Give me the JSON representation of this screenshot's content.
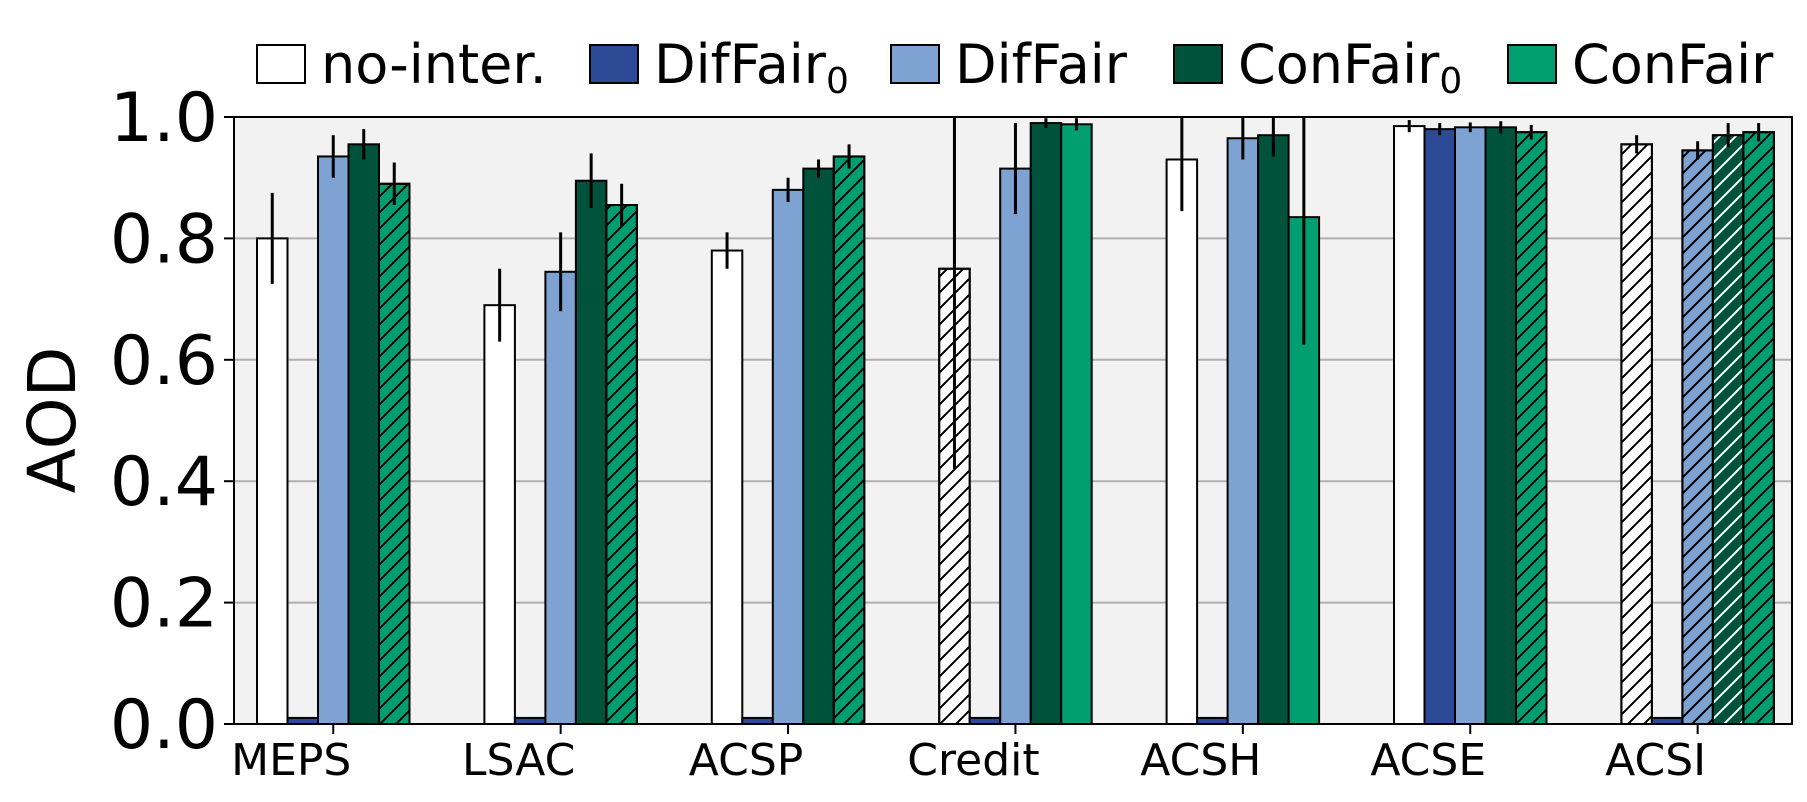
{
  "chart_data": {
    "type": "bar",
    "ylabel": "AOD",
    "xlabel": "",
    "title": "",
    "ylim": [
      0,
      1.0
    ],
    "yticks": [
      "0.0",
      "0.2",
      "0.4",
      "0.6",
      "0.8",
      "1.0"
    ],
    "grid": "horizontal",
    "legend_position": "top",
    "categories": [
      "MEPS",
      "LSAC",
      "ACSP",
      "Credit",
      "ACSH",
      "ACSE",
      "ACSI"
    ],
    "series": [
      {
        "name": "no-inter.",
        "legend_label": "no-inter.",
        "color": "#ffffff",
        "values": [
          0.8,
          0.69,
          0.78,
          0.75,
          0.93,
          0.985,
          0.955
        ],
        "errors": [
          0.075,
          0.06,
          0.03,
          0.33,
          0.085,
          0.01,
          0.015
        ],
        "hatched": [
          false,
          false,
          false,
          true,
          false,
          false,
          true
        ]
      },
      {
        "name": "DifFair_0",
        "legend_label": "DifFair",
        "legend_sub": "0",
        "color": "#2c4a96",
        "values": [
          0.01,
          0.01,
          0.01,
          0.01,
          0.01,
          0.98,
          0.01
        ],
        "errors": [
          0,
          0,
          0,
          0,
          0,
          0.01,
          0
        ],
        "hatched": [
          false,
          false,
          false,
          false,
          false,
          false,
          false
        ]
      },
      {
        "name": "DifFair",
        "legend_label": "DifFair",
        "color": "#7ea2d2",
        "values": [
          0.935,
          0.745,
          0.88,
          0.915,
          0.965,
          0.983,
          0.945
        ],
        "errors": [
          0.035,
          0.065,
          0.02,
          0.075,
          0.035,
          0.008,
          0.015
        ],
        "hatched": [
          false,
          false,
          false,
          false,
          false,
          false,
          true
        ]
      },
      {
        "name": "ConFair_0",
        "legend_label": "ConFair",
        "legend_sub": "0",
        "color": "#00533a",
        "values": [
          0.955,
          0.895,
          0.915,
          0.99,
          0.97,
          0.983,
          0.97
        ],
        "errors": [
          0.025,
          0.045,
          0.015,
          0.008,
          0.035,
          0.01,
          0.02
        ],
        "hatched": [
          false,
          false,
          false,
          false,
          false,
          false,
          true
        ]
      },
      {
        "name": "ConFair",
        "legend_label": "ConFair",
        "color": "#019e72",
        "values": [
          0.89,
          0.855,
          0.935,
          0.988,
          0.835,
          0.975,
          0.975
        ],
        "errors": [
          0.035,
          0.035,
          0.02,
          0.01,
          0.21,
          0.012,
          0.015
        ],
        "hatched": [
          true,
          true,
          true,
          false,
          false,
          true,
          true
        ]
      }
    ]
  }
}
